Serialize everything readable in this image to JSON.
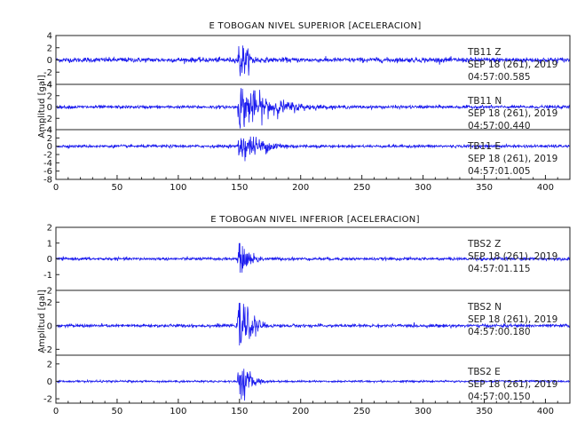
{
  "chart_data": [
    {
      "type": "line",
      "title": "E TOBOGAN NIVEL SUPERIOR [ACELERACION]",
      "ylabel": "Amplitud [gal]",
      "xlabel": "",
      "xlim": [
        0,
        420
      ],
      "xticks": [
        0,
        50,
        100,
        150,
        200,
        250,
        300,
        350,
        400
      ],
      "series_color": "#1a1aee",
      "panels": [
        {
          "name": "TB11 Z",
          "label_station": "TB11",
          "label_comp": "Z",
          "label_date": "SEP 18 (261), 2019",
          "label_time": "04:57:00.585",
          "ylim": [
            -4,
            4
          ],
          "yticks": [
            4,
            2,
            0,
            -2,
            -4
          ],
          "event_onset": 148,
          "peak_amp": 3.5,
          "noise_amp": 0.35,
          "decay_s": 8
        },
        {
          "name": "TB11 N",
          "label_station": "TB11",
          "label_comp": "N",
          "label_date": "SEP 18 (261), 2019",
          "label_time": "04:57:00.440",
          "ylim": [
            -4,
            4
          ],
          "yticks": [
            4,
            2,
            0,
            -2,
            -4
          ],
          "event_onset": 148,
          "peak_amp": 3.8,
          "noise_amp": 0.25,
          "decay_s": 28
        },
        {
          "name": "TB11 E",
          "label_station": "TB11",
          "label_comp": "E",
          "label_date": "SEP 18 (261), 2019",
          "label_time": "04:57:01.005",
          "ylim": [
            -8,
            4
          ],
          "yticks": [
            4,
            2,
            0,
            -2,
            -4,
            -6,
            -8
          ],
          "event_onset": 148,
          "peak_amp": 3.6,
          "noise_amp": 0.3,
          "decay_s": 22
        }
      ]
    },
    {
      "type": "line",
      "title": "E TOBOGAN NIVEL INFERIOR [ACELERACION]",
      "ylabel": "Amplitud [gal]",
      "xlabel": "",
      "xlim": [
        0,
        420
      ],
      "xticks": [
        0,
        50,
        100,
        150,
        200,
        250,
        300,
        350,
        400
      ],
      "series_color": "#1a1aee",
      "panels": [
        {
          "name": "TBS2 Z",
          "label_station": "TBS2",
          "label_comp": "Z",
          "label_date": "SEP 18 (261), 2019",
          "label_time": "04:57:01.115",
          "ylim": [
            -2,
            2
          ],
          "yticks": [
            2,
            1,
            0,
            -1,
            -2
          ],
          "event_onset": 148,
          "peak_amp": 1.0,
          "noise_amp": 0.08,
          "decay_s": 10
        },
        {
          "name": "TBS2 N",
          "label_station": "TBS2",
          "label_comp": "N",
          "label_date": "SEP 18 (261), 2019",
          "label_time": "04:57:00.180",
          "ylim": [
            -2.5,
            3
          ],
          "yticks": [
            2,
            0,
            -2
          ],
          "event_onset": 148,
          "peak_amp": 2.6,
          "noise_amp": 0.12,
          "decay_s": 9
        },
        {
          "name": "TBS2 E",
          "label_station": "TBS2",
          "label_comp": "E",
          "label_date": "SEP 18 (261), 2019",
          "label_time": "04:57:00.150",
          "ylim": [
            -2.5,
            3
          ],
          "yticks": [
            2,
            0,
            -2
          ],
          "event_onset": 148,
          "peak_amp": 2.5,
          "noise_amp": 0.1,
          "decay_s": 8
        }
      ]
    }
  ]
}
